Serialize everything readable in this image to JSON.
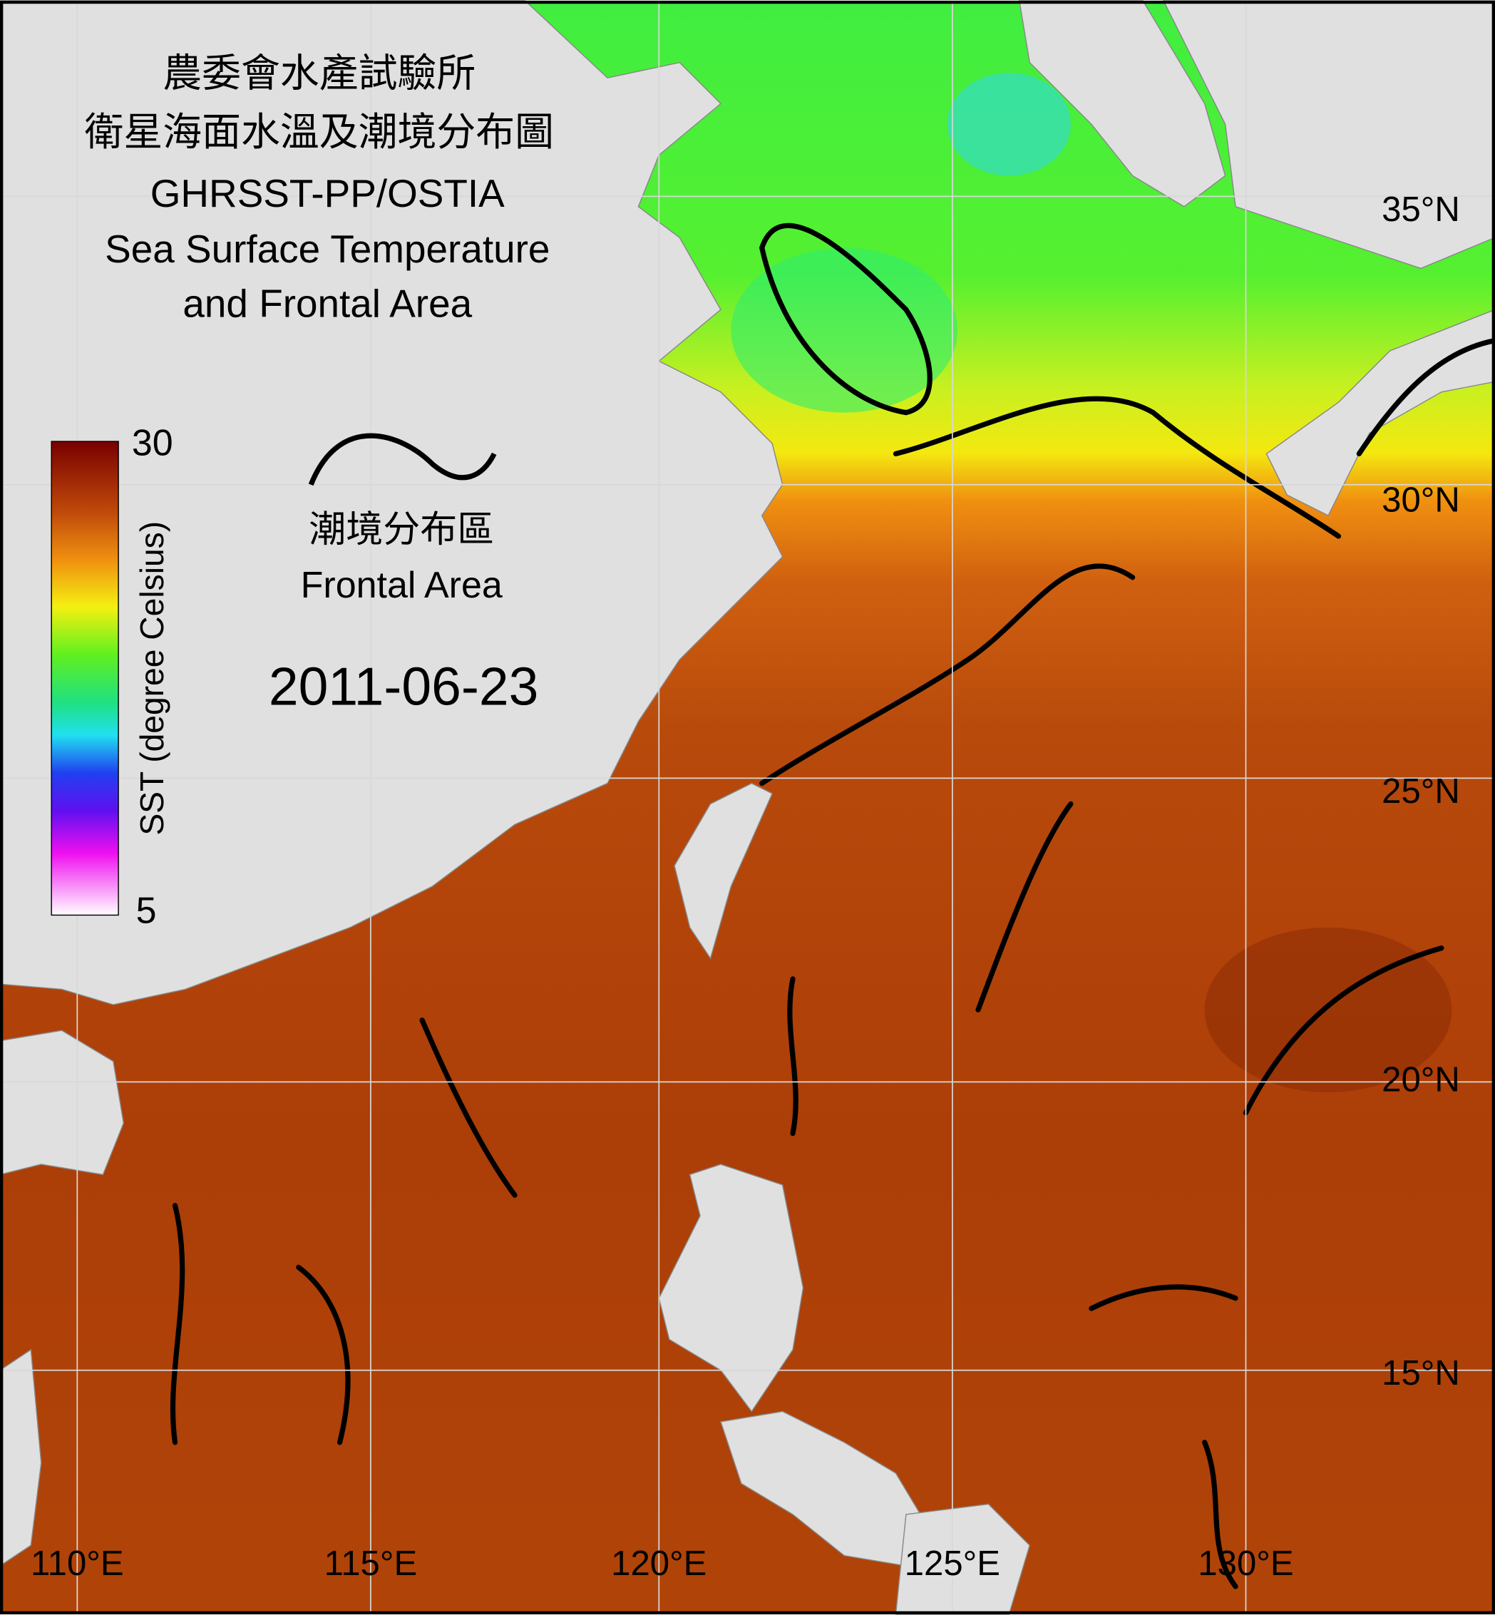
{
  "title": {
    "agency": "農委會水產試驗所",
    "zh_title": "衛星海面水溫及潮境分布圖",
    "source": "GHRSST-PP/OSTIA",
    "en_line1": "Sea Surface Temperature",
    "en_line2": "and Frontal Area"
  },
  "colorbar": {
    "label": "SST (degree Celsius)",
    "max": 30,
    "min": 5
  },
  "legend": {
    "zh": "潮境分布區",
    "en": "Frontal Area"
  },
  "date": "2011-06-23",
  "latitudes": [
    "35°N",
    "30°N",
    "25°N",
    "20°N",
    "15°N"
  ],
  "longitudes": [
    "110°E",
    "115°E",
    "120°E",
    "125°E",
    "130°E"
  ]
}
